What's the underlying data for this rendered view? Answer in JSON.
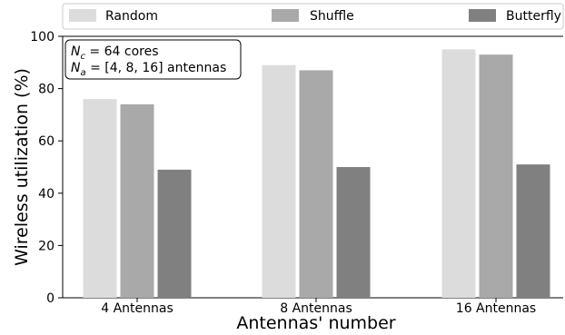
{
  "chart_data": {
    "type": "bar",
    "categories": [
      "4 Antennas",
      "8 Antennas",
      "16 Antennas"
    ],
    "series": [
      {
        "name": "Random",
        "color": "#dcdcdc",
        "values": [
          76,
          89,
          95
        ]
      },
      {
        "name": "Shuffle",
        "color": "#a9a9a9",
        "values": [
          74,
          87,
          93
        ]
      },
      {
        "name": "Butterfly",
        "color": "#808080",
        "values": [
          49,
          50,
          51
        ]
      }
    ],
    "xlabel": "Antennas' number",
    "ylabel": "Wireless utilization (%)",
    "ylim": [
      0,
      100
    ],
    "yticks": [
      "0",
      "20",
      "40",
      "60",
      "80",
      "100"
    ],
    "grid": false,
    "legend_position": "top",
    "annotation": {
      "line1_symbol": "N",
      "line1_sub": "c",
      "line1_text": " = 64 cores",
      "line2_symbol": "N",
      "line2_sub": "a",
      "line2_text": " = [4, 8, 16] antennas"
    }
  }
}
